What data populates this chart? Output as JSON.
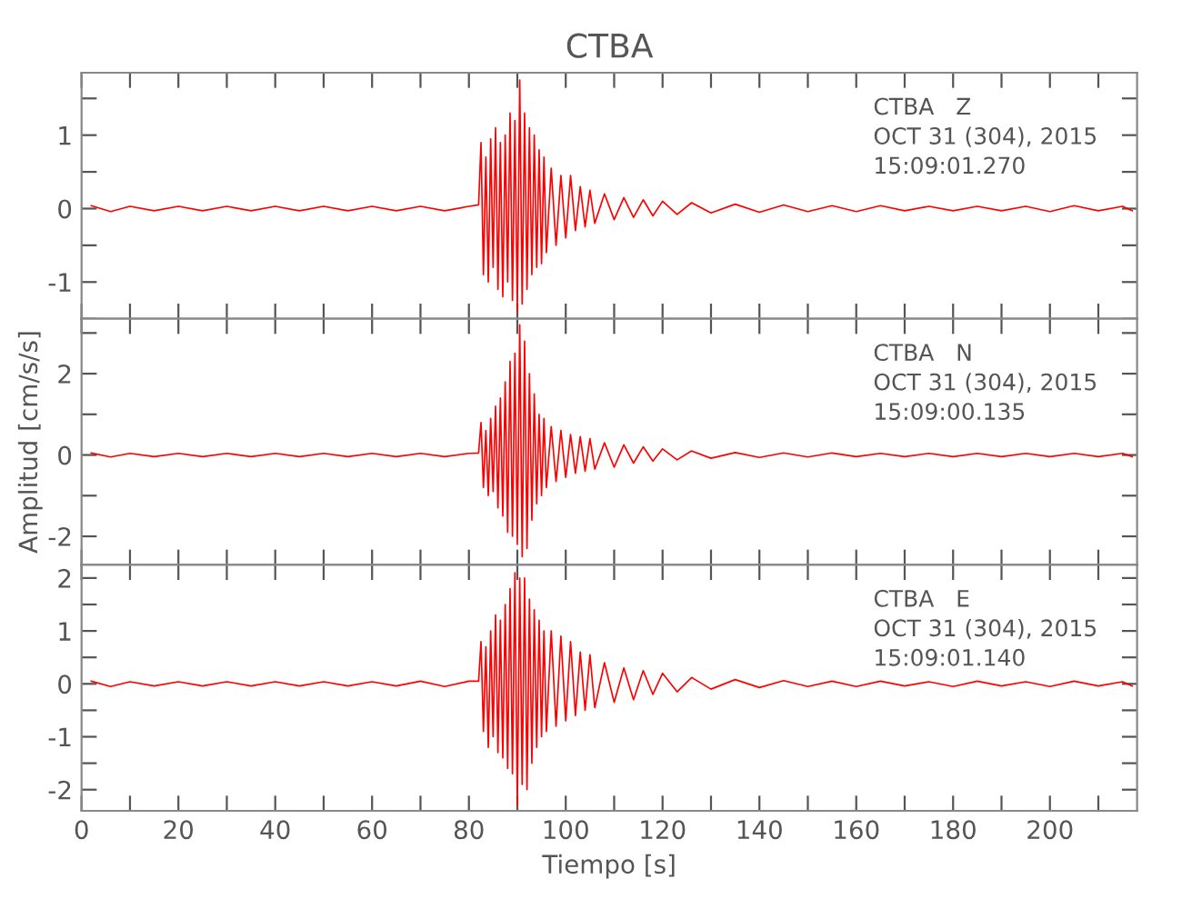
{
  "chart_data": [
    {
      "type": "line",
      "title": "CTBA",
      "annotations": [
        "CTBA   Z",
        "OCT 31 (304), 2015",
        "15:09:01.270"
      ],
      "tick_labels": "y",
      "grid": false,
      "x": [
        2,
        6,
        10,
        15,
        20,
        25,
        30,
        35,
        40,
        45,
        50,
        55,
        60,
        65,
        70,
        75,
        80,
        82,
        82.5,
        83,
        83.5,
        84,
        84.5,
        85,
        85.5,
        86,
        86.5,
        87,
        87.5,
        88,
        88.5,
        89,
        89.5,
        90,
        90.5,
        91,
        91.5,
        92,
        92.5,
        93,
        93.5,
        94,
        94.5,
        95,
        95.5,
        96,
        97,
        98,
        99,
        100,
        101,
        102,
        103,
        104,
        105,
        106,
        108,
        110,
        112,
        114,
        116,
        118,
        120,
        123,
        126,
        130,
        135,
        140,
        145,
        150,
        155,
        160,
        165,
        170,
        175,
        180,
        185,
        190,
        195,
        200,
        205,
        210,
        215,
        217
      ],
      "xlim": [
        0,
        218
      ],
      "xticks": [
        0,
        {
          "value": 10,
          "label": null
        },
        20,
        {
          "value": 30,
          "label": null
        },
        40,
        {
          "value": 50,
          "label": null
        },
        60,
        {
          "value": 70,
          "label": null
        },
        80,
        {
          "value": 90,
          "label": null
        },
        100,
        {
          "value": 110,
          "label": null
        },
        120,
        {
          "value": 130,
          "label": null
        },
        140,
        {
          "value": 150,
          "label": null
        },
        160,
        {
          "value": 170,
          "label": null
        },
        180,
        {
          "value": 190,
          "label": null
        },
        200,
        {
          "value": 210,
          "label": null
        }
      ],
      "ylim": [
        -1.5,
        1.85
      ],
      "yticks": [
        {
          "value": -1.5,
          "label": null
        },
        -1,
        {
          "value": -0.5,
          "label": null
        },
        0,
        {
          "value": 0.5,
          "label": null
        },
        1,
        {
          "value": 1.5,
          "label": null
        }
      ],
      "series": [
        {
          "color": "#ff0000",
          "values": [
            0.04,
            -0.04,
            0.03,
            -0.03,
            0.03,
            -0.03,
            0.03,
            -0.03,
            0.03,
            -0.03,
            0.03,
            -0.03,
            0.03,
            -0.03,
            0.03,
            -0.03,
            0.03,
            0.05,
            0.9,
            -0.9,
            0.7,
            -1.0,
            0.95,
            -0.8,
            1.1,
            -1.1,
            0.9,
            -1.2,
            1.0,
            -1.0,
            1.3,
            -1.25,
            1.2,
            -1.4,
            1.75,
            -1.3,
            1.3,
            -1.1,
            1.1,
            -0.9,
            1.0,
            -0.8,
            0.8,
            -0.75,
            0.7,
            -0.6,
            0.55,
            -0.5,
            0.45,
            -0.4,
            0.45,
            -0.3,
            0.3,
            -0.25,
            0.25,
            -0.2,
            0.2,
            -0.15,
            0.15,
            -0.12,
            0.12,
            -0.1,
            0.1,
            -0.08,
            0.08,
            -0.06,
            0.06,
            -0.05,
            0.05,
            -0.04,
            0.04,
            -0.04,
            0.04,
            -0.03,
            0.03,
            -0.03,
            0.03,
            -0.03,
            0.03,
            -0.04,
            0.04,
            -0.03,
            0.03,
            -0.03
          ]
        }
      ]
    },
    {
      "type": "line",
      "ylabel": "Amplitud [cm/s/s]",
      "annotations": [
        "CTBA   N",
        "OCT 31 (304), 2015",
        "15:09:00.135"
      ],
      "tick_labels": "y",
      "grid": false,
      "x": [
        2,
        6,
        10,
        15,
        20,
        25,
        30,
        35,
        40,
        45,
        50,
        55,
        60,
        65,
        70,
        75,
        80,
        82,
        82.5,
        83,
        83.5,
        84,
        84.5,
        85,
        85.5,
        86,
        86.5,
        87,
        87.5,
        88,
        88.5,
        89,
        89.5,
        90,
        90.5,
        91,
        91.5,
        92,
        92.5,
        93,
        93.5,
        94,
        94.5,
        95,
        95.5,
        96,
        97,
        98,
        99,
        100,
        101,
        102,
        103,
        104,
        105,
        106,
        108,
        110,
        112,
        114,
        116,
        118,
        120,
        123,
        126,
        130,
        135,
        140,
        145,
        150,
        155,
        160,
        165,
        170,
        175,
        180,
        185,
        190,
        195,
        200,
        205,
        210,
        215,
        217
      ],
      "xlim": [
        0,
        218
      ],
      "xticks": [
        0,
        {
          "value": 10,
          "label": null
        },
        20,
        {
          "value": 30,
          "label": null
        },
        40,
        {
          "value": 50,
          "label": null
        },
        60,
        {
          "value": 70,
          "label": null
        },
        80,
        {
          "value": 90,
          "label": null
        },
        100,
        {
          "value": 110,
          "label": null
        },
        120,
        {
          "value": 130,
          "label": null
        },
        140,
        {
          "value": 150,
          "label": null
        },
        160,
        {
          "value": 170,
          "label": null
        },
        180,
        {
          "value": 190,
          "label": null
        },
        200,
        {
          "value": 210,
          "label": null
        }
      ],
      "ylim": [
        -2.7,
        3.35
      ],
      "yticks": [
        -2,
        {
          "value": -1,
          "label": null
        },
        0,
        {
          "value": 1,
          "label": null
        },
        2,
        {
          "value": 3,
          "label": null
        }
      ],
      "series": [
        {
          "color": "#ff0000",
          "values": [
            0.05,
            -0.05,
            0.04,
            -0.04,
            0.04,
            -0.04,
            0.04,
            -0.04,
            0.04,
            -0.04,
            0.04,
            -0.04,
            0.04,
            -0.04,
            0.04,
            -0.04,
            0.04,
            0.05,
            0.8,
            -0.8,
            0.6,
            -1.0,
            0.9,
            -0.9,
            1.2,
            -1.3,
            1.4,
            -1.5,
            1.8,
            -1.9,
            2.3,
            -2.0,
            2.5,
            -2.2,
            3.2,
            -2.5,
            2.8,
            -2.3,
            2.0,
            -1.6,
            1.5,
            -1.2,
            1.0,
            -1.0,
            0.9,
            -0.8,
            0.7,
            -0.65,
            0.6,
            -0.55,
            0.5,
            -0.45,
            0.45,
            -0.4,
            0.4,
            -0.35,
            0.3,
            -0.3,
            0.25,
            -0.2,
            0.2,
            -0.15,
            0.15,
            -0.12,
            0.1,
            -0.08,
            0.06,
            -0.06,
            0.05,
            -0.05,
            0.05,
            -0.04,
            0.04,
            -0.04,
            0.04,
            -0.04,
            0.04,
            -0.04,
            0.04,
            -0.04,
            0.04,
            -0.04,
            0.04,
            -0.04
          ]
        }
      ]
    },
    {
      "type": "line",
      "xlabel": "Tiempo [s]",
      "annotations": [
        "CTBA   E",
        "OCT 31 (304), 2015",
        "15:09:01.140"
      ],
      "grid": false,
      "x": [
        2,
        6,
        10,
        15,
        20,
        25,
        30,
        35,
        40,
        45,
        50,
        55,
        60,
        65,
        70,
        75,
        80,
        82,
        82.5,
        83,
        83.5,
        84,
        84.5,
        85,
        85.5,
        86,
        86.5,
        87,
        87.5,
        88,
        88.5,
        89,
        89.5,
        90,
        90.5,
        91,
        91.5,
        92,
        92.5,
        93,
        93.5,
        94,
        94.5,
        95,
        95.5,
        96,
        97,
        98,
        99,
        100,
        101,
        102,
        103,
        104,
        105,
        106,
        108,
        110,
        112,
        114,
        116,
        118,
        120,
        123,
        126,
        130,
        135,
        140,
        145,
        150,
        155,
        160,
        165,
        170,
        175,
        180,
        185,
        190,
        195,
        200,
        205,
        210,
        215,
        217
      ],
      "xlim": [
        0,
        218
      ],
      "xticks": [
        0,
        {
          "value": 10,
          "label": null
        },
        20,
        {
          "value": 30,
          "label": null
        },
        40,
        {
          "value": 50,
          "label": null
        },
        60,
        {
          "value": 70,
          "label": null
        },
        80,
        {
          "value": 90,
          "label": null
        },
        100,
        {
          "value": 110,
          "label": null
        },
        120,
        {
          "value": 130,
          "label": null
        },
        140,
        {
          "value": 150,
          "label": null
        },
        160,
        {
          "value": 170,
          "label": null
        },
        180,
        {
          "value": 190,
          "label": null
        },
        200,
        {
          "value": 210,
          "label": null
        }
      ],
      "ylim": [
        -2.4,
        2.25
      ],
      "yticks": [
        -2,
        {
          "value": -1.5,
          "label": null
        },
        -1,
        {
          "value": -0.5,
          "label": null
        },
        0,
        {
          "value": 0.5,
          "label": null
        },
        1,
        {
          "value": 1.5,
          "label": null
        },
        2
      ],
      "series": [
        {
          "color": "#ff0000",
          "values": [
            0.05,
            -0.05,
            0.04,
            -0.04,
            0.04,
            -0.04,
            0.04,
            -0.04,
            0.04,
            -0.04,
            0.04,
            -0.04,
            0.04,
            -0.04,
            0.05,
            -0.05,
            0.05,
            0.05,
            0.8,
            -0.9,
            0.7,
            -1.2,
            1.0,
            -1.0,
            1.3,
            -1.3,
            1.2,
            -1.4,
            1.5,
            -1.6,
            1.8,
            -1.7,
            2.1,
            -2.3,
            2.0,
            -1.9,
            2.0,
            -2.0,
            1.6,
            -1.5,
            1.4,
            -1.2,
            1.2,
            -1.0,
            1.0,
            -0.9,
            1.0,
            -0.8,
            0.9,
            -0.7,
            0.8,
            -0.6,
            0.6,
            -0.5,
            0.55,
            -0.45,
            0.4,
            -0.35,
            0.3,
            -0.3,
            0.25,
            -0.2,
            0.2,
            -0.15,
            0.12,
            -0.1,
            0.08,
            -0.07,
            0.06,
            -0.05,
            0.05,
            -0.05,
            0.05,
            -0.04,
            0.04,
            -0.05,
            0.05,
            -0.04,
            0.04,
            -0.05,
            0.05,
            -0.04,
            0.04,
            -0.04
          ]
        }
      ]
    }
  ]
}
